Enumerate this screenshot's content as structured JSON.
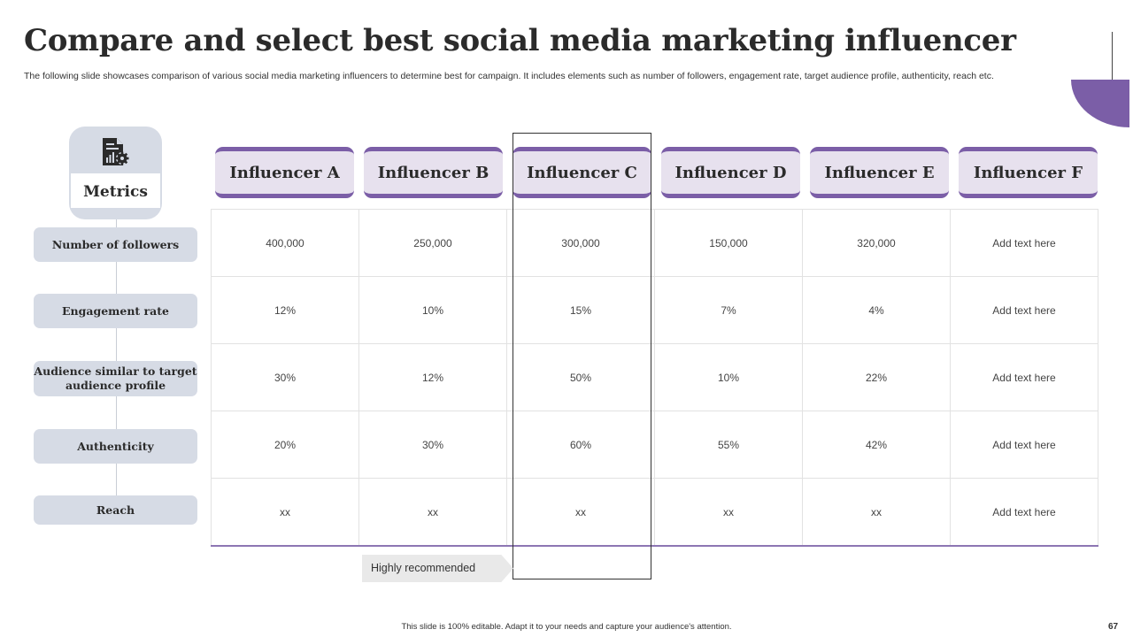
{
  "slide": {
    "title": "Compare and select best social media marketing influencer",
    "subtitle": "The following slide showcases comparison of various social media marketing influencers to determine best for campaign. It includes elements such as number of followers, engagement rate, target audience profile, authenticity, reach etc.",
    "accent_color": "#7b5ea7",
    "metrics_icon": "document-gear-icon",
    "metrics_heading": "Metrics",
    "metrics": [
      "Number of followers",
      "Engagement rate",
      "Audience similar to target audience profile",
      "Authenticity",
      "Reach"
    ],
    "influencers": [
      "Influencer A",
      "Influencer B",
      "Influencer C",
      "Influencer D",
      "Influencer E",
      "Influencer F"
    ],
    "table": [
      [
        "400,000",
        "250,000",
        "300,000",
        "150,000",
        "320,000",
        "Add text here"
      ],
      [
        "12%",
        "10%",
        "15%",
        "7%",
        "4%",
        "Add text here"
      ],
      [
        "30%",
        "12%",
        "50%",
        "10%",
        "22%",
        "Add text here"
      ],
      [
        "20%",
        "30%",
        "60%",
        "55%",
        "42%",
        "Add text here"
      ],
      [
        "xx",
        "xx",
        "xx",
        "xx",
        "xx",
        "Add text here"
      ]
    ],
    "recommendation_label": "Highly recommended",
    "footer": "This slide is 100% editable.  Adapt it to your needs and capture your audience's attention.",
    "page_number": "67"
  }
}
